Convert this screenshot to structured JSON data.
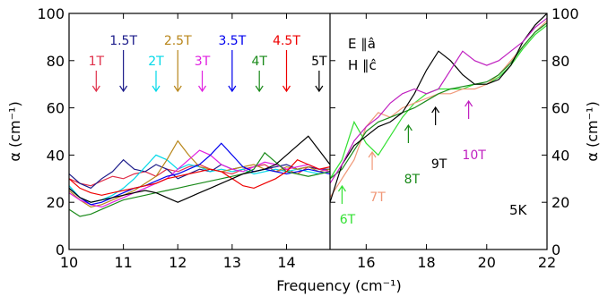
{
  "chart_data": {
    "type": "line",
    "xlabel": "Frequency (cm⁻¹)",
    "ylabel": "α (cm⁻¹)",
    "ylim": [
      0,
      100
    ],
    "yticks": [
      "0",
      "20",
      "40",
      "60",
      "80",
      "100"
    ],
    "right_yticks": [
      "0",
      "20",
      "40",
      "60",
      "80",
      "100"
    ],
    "panels": [
      {
        "xlim": [
          10,
          14.8
        ],
        "xticks": [
          "10",
          "11",
          "12",
          "13",
          "14"
        ]
      },
      {
        "xlim": [
          14.8,
          22
        ],
        "xticks": [
          "16",
          "18",
          "20",
          "22"
        ]
      }
    ],
    "annotations": {
      "polarization_E": "E ∥â",
      "polarization_H": "H ∥ĉ",
      "temperature": "5K"
    },
    "field_labels": [
      {
        "text": "1T",
        "x": 10.5,
        "color": "#e0304a"
      },
      {
        "text": "1.5T",
        "x": 11.0,
        "color": "#1b1b8a"
      },
      {
        "text": "2T",
        "x": 11.6,
        "color": "#00d8e8"
      },
      {
        "text": "2.5T",
        "x": 12.0,
        "color": "#b8861a"
      },
      {
        "text": "3T",
        "x": 12.45,
        "color": "#e020e0"
      },
      {
        "text": "3.5T",
        "x": 13.0,
        "color": "#0000ee"
      },
      {
        "text": "4T",
        "x": 13.5,
        "color": "#1a8a1a"
      },
      {
        "text": "4.5T",
        "x": 14.0,
        "color": "#ee0000"
      },
      {
        "text": "5T",
        "x": 14.6,
        "color": "#000000"
      },
      {
        "text": "6T",
        "x": 15.2,
        "color": "#33e033"
      },
      {
        "text": "7T",
        "x": 16.2,
        "color": "#f09878"
      },
      {
        "text": "8T",
        "x": 17.4,
        "color": "#1a8a1a"
      },
      {
        "text": "9T",
        "x": 18.3,
        "color": "#000000"
      },
      {
        "text": "10T",
        "x": 19.4,
        "color": "#c020c0"
      }
    ],
    "series": [
      {
        "color": "#e0304a",
        "x": [
          10,
          10.2,
          10.4,
          10.6,
          10.8,
          11,
          11.2,
          11.4,
          11.6,
          11.8,
          12,
          12.2,
          12.4,
          12.6,
          12.8,
          13,
          13.2,
          13.4,
          13.6,
          13.8,
          14,
          14.2,
          14.4,
          14.6,
          14.8
        ],
        "y": [
          30,
          28,
          27,
          29,
          31,
          30,
          32,
          33,
          31,
          34,
          33,
          35,
          36,
          34,
          33,
          32,
          34,
          35,
          36,
          33,
          34,
          32,
          35,
          34,
          33
        ]
      },
      {
        "color": "#1b1b8a",
        "x": [
          10,
          10.2,
          10.4,
          10.6,
          10.8,
          11,
          11.2,
          11.4,
          11.6,
          11.8,
          12,
          12.2,
          12.4,
          12.6,
          12.8,
          13,
          13.2,
          13.4,
          13.6,
          13.8,
          14,
          14.2,
          14.4,
          14.6,
          14.8
        ],
        "y": [
          32,
          28,
          26,
          30,
          33,
          38,
          34,
          33,
          36,
          34,
          30,
          32,
          34,
          33,
          36,
          34,
          35,
          33,
          34,
          35,
          36,
          34,
          35,
          34,
          34
        ]
      },
      {
        "color": "#00d8e8",
        "x": [
          10,
          10.2,
          10.4,
          10.6,
          10.8,
          11,
          11.2,
          11.4,
          11.6,
          11.8,
          12,
          12.2,
          12.4,
          12.6,
          12.8,
          13,
          13.2,
          13.4,
          13.6,
          13.8,
          14,
          14.2,
          14.4,
          14.6,
          14.8
        ],
        "y": [
          27,
          22,
          20,
          21,
          23,
          26,
          30,
          35,
          40,
          38,
          34,
          36,
          35,
          33,
          34,
          33,
          34,
          32,
          33,
          34,
          33,
          34,
          33,
          32,
          33
        ]
      },
      {
        "color": "#b8861a",
        "x": [
          10,
          10.2,
          10.4,
          10.6,
          10.8,
          11,
          11.2,
          11.4,
          11.6,
          11.8,
          12,
          12.2,
          12.4,
          12.6,
          12.8,
          13,
          13.2,
          13.4,
          13.6,
          13.8,
          14,
          14.2,
          14.4,
          14.6,
          14.8
        ],
        "y": [
          25,
          21,
          18,
          19,
          21,
          23,
          25,
          28,
          31,
          38,
          46,
          40,
          35,
          34,
          33,
          34,
          35,
          36,
          34,
          33,
          35,
          34,
          35,
          33,
          34
        ]
      },
      {
        "color": "#e020e0",
        "x": [
          10,
          10.2,
          10.4,
          10.6,
          10.8,
          11,
          11.2,
          11.4,
          11.6,
          11.8,
          12,
          12.2,
          12.4,
          12.6,
          12.8,
          13,
          13.2,
          13.4,
          13.6,
          13.8,
          14,
          14.2,
          14.4,
          14.6,
          14.8
        ],
        "y": [
          24,
          21,
          19,
          18,
          20,
          22,
          24,
          26,
          28,
          30,
          34,
          38,
          42,
          40,
          36,
          34,
          33,
          35,
          37,
          36,
          34,
          35,
          36,
          34,
          33
        ]
      },
      {
        "color": "#0000ee",
        "x": [
          10,
          10.2,
          10.4,
          10.6,
          10.8,
          11,
          11.2,
          11.4,
          11.6,
          11.8,
          12,
          12.2,
          12.4,
          12.6,
          12.8,
          13,
          13.2,
          13.4,
          13.6,
          13.8,
          14,
          14.2,
          14.4,
          14.6,
          14.8
        ],
        "y": [
          26,
          22,
          19,
          20,
          22,
          24,
          26,
          27,
          29,
          31,
          32,
          34,
          36,
          40,
          45,
          40,
          35,
          33,
          34,
          33,
          32,
          33,
          34,
          33,
          32
        ]
      },
      {
        "color": "#1a8a1a",
        "x": [
          10,
          10.2,
          10.4,
          10.6,
          10.8,
          11,
          11.2,
          11.4,
          11.6,
          11.8,
          12,
          12.2,
          12.4,
          12.6,
          12.8,
          13,
          13.2,
          13.4,
          13.6,
          13.8,
          14,
          14.2,
          14.4,
          14.6,
          14.8
        ],
        "y": [
          17,
          14,
          15,
          17,
          19,
          21,
          22,
          23,
          24,
          25,
          26,
          27,
          28,
          29,
          30,
          31,
          32,
          34,
          41,
          37,
          33,
          32,
          31,
          32,
          33
        ]
      },
      {
        "color": "#ee0000",
        "x": [
          10,
          10.2,
          10.4,
          10.6,
          10.8,
          11,
          11.2,
          11.4,
          11.6,
          11.8,
          12,
          12.2,
          12.4,
          12.6,
          12.8,
          13,
          13.2,
          13.4,
          13.6,
          13.8,
          14,
          14.2,
          14.4,
          14.6,
          14.8
        ],
        "y": [
          30,
          26,
          24,
          23,
          24,
          25,
          26,
          27,
          28,
          30,
          31,
          32,
          33,
          34,
          33,
          30,
          27,
          26,
          28,
          30,
          33,
          38,
          36,
          34,
          35
        ]
      },
      {
        "color": "#000000",
        "x": [
          10,
          10.2,
          10.4,
          10.6,
          10.8,
          11,
          11.2,
          11.4,
          11.6,
          11.8,
          12,
          12.2,
          12.4,
          12.6,
          12.8,
          13,
          13.2,
          13.4,
          13.6,
          13.8,
          14,
          14.2,
          14.4,
          14.6,
          14.8
        ],
        "y": [
          26,
          22,
          20,
          21,
          22,
          23,
          24,
          25,
          24,
          22,
          20,
          22,
          24,
          26,
          28,
          30,
          32,
          33,
          34,
          36,
          40,
          44,
          48,
          42,
          36
        ]
      },
      {
        "color": "#33e033",
        "x": [
          14.8,
          15.2,
          15.6,
          16.0,
          16.4,
          16.8,
          17.2,
          17.6,
          18.0,
          18.4,
          18.8,
          19.2,
          19.6,
          20.0,
          20.4,
          20.8,
          21.2,
          21.6,
          22.0
        ],
        "y": [
          30,
          38,
          54,
          45,
          40,
          48,
          56,
          62,
          66,
          68,
          68,
          68,
          70,
          70,
          73,
          78,
          85,
          91,
          95
        ]
      },
      {
        "color": "#f09878",
        "x": [
          14.8,
          15.2,
          15.6,
          16.0,
          16.4,
          16.8,
          17.2,
          17.6,
          18.0,
          18.4,
          18.8,
          19.2,
          19.6,
          20.0,
          20.4,
          20.8,
          21.2,
          21.6,
          22.0
        ],
        "y": [
          22,
          30,
          38,
          52,
          58,
          56,
          60,
          62,
          64,
          66,
          66,
          68,
          68,
          70,
          74,
          80,
          86,
          92,
          97
        ]
      },
      {
        "color": "#1a8a1a",
        "x": [
          14.8,
          15.2,
          15.6,
          16.0,
          16.4,
          16.8,
          17.2,
          17.6,
          18.0,
          18.4,
          18.8,
          19.2,
          19.6,
          20.0,
          20.4,
          20.8,
          21.2,
          21.6,
          22.0
        ],
        "y": [
          30,
          34,
          42,
          50,
          54,
          56,
          58,
          60,
          63,
          66,
          68,
          69,
          70,
          71,
          74,
          79,
          86,
          92,
          96
        ]
      },
      {
        "color": "#000000",
        "x": [
          14.8,
          15.2,
          15.6,
          16.0,
          16.4,
          16.8,
          17.2,
          17.6,
          18.0,
          18.4,
          18.8,
          19.2,
          19.6,
          20.0,
          20.4,
          20.8,
          21.2,
          21.6,
          22.0
        ],
        "y": [
          20,
          36,
          44,
          48,
          52,
          54,
          58,
          66,
          76,
          84,
          80,
          74,
          70,
          70,
          72,
          78,
          88,
          95,
          100
        ]
      },
      {
        "color": "#c020c0",
        "x": [
          14.8,
          15.2,
          15.6,
          16.0,
          16.4,
          16.8,
          17.2,
          17.6,
          18.0,
          18.4,
          18.8,
          19.2,
          19.6,
          20.0,
          20.4,
          20.8,
          21.2,
          21.6,
          22.0
        ],
        "y": [
          28,
          36,
          46,
          52,
          56,
          62,
          66,
          68,
          66,
          68,
          76,
          84,
          80,
          78,
          80,
          84,
          88,
          94,
          98
        ]
      }
    ]
  }
}
